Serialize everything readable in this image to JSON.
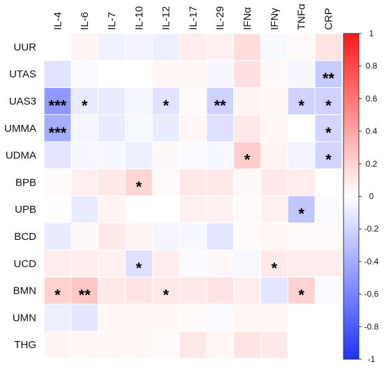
{
  "chart_data": {
    "type": "heatmap",
    "title": "",
    "xlabel": "",
    "ylabel": "",
    "columns": [
      "IL-4",
      "IL-6",
      "IL-7",
      "IL-10",
      "IL-12",
      "IL-17",
      "IL-29",
      "IFNα",
      "IFNγ",
      "TNFα",
      "CRP"
    ],
    "rows": [
      "UUR",
      "UTAS",
      "UAS3",
      "UMMA",
      "UDMA",
      "BPB",
      "UPB",
      "BCD",
      "UCD",
      "BMN",
      "UMN",
      "THG"
    ],
    "values": [
      [
        0.0,
        0.05,
        -0.07,
        -0.06,
        -0.08,
        0.08,
        0.06,
        0.15,
        -0.03,
        0.02,
        0.12
      ],
      [
        -0.13,
        -0.02,
        0.0,
        0.0,
        0.04,
        0.04,
        -0.05,
        0.14,
        0.03,
        -0.04,
        -0.25
      ],
      [
        -0.5,
        -0.1,
        -0.1,
        -0.05,
        -0.14,
        0.02,
        -0.22,
        0.05,
        0.04,
        -0.22,
        -0.22
      ],
      [
        -0.4,
        -0.05,
        -0.1,
        -0.03,
        -0.1,
        0.04,
        -0.15,
        0.1,
        0.04,
        0.0,
        -0.2
      ],
      [
        -0.12,
        -0.04,
        -0.04,
        -0.08,
        0.03,
        -0.02,
        -0.04,
        0.22,
        0.05,
        -0.06,
        -0.2
      ],
      [
        0.02,
        0.07,
        0.1,
        0.18,
        0.02,
        0.1,
        0.1,
        0.03,
        0.1,
        0.08,
        0.0
      ],
      [
        0.01,
        -0.1,
        0.05,
        0.0,
        0.0,
        0.06,
        0.06,
        0.02,
        0.06,
        -0.28,
        -0.02
      ],
      [
        -0.1,
        0.03,
        0.1,
        0.05,
        -0.05,
        -0.04,
        -0.12,
        0.02,
        0.04,
        0.02,
        0.02
      ],
      [
        0.08,
        0.08,
        0.06,
        -0.15,
        0.08,
        -0.02,
        0.03,
        -0.03,
        0.1,
        0.08,
        0.08
      ],
      [
        0.2,
        0.25,
        0.1,
        0.12,
        0.1,
        0.1,
        0.12,
        0.08,
        -0.12,
        0.2,
        -0.02
      ],
      [
        -0.08,
        -0.12,
        0.04,
        0.04,
        0.04,
        0.02,
        -0.02,
        0.04,
        0.04,
        0.0,
        0.0
      ],
      [
        0.05,
        0.04,
        0.04,
        0.04,
        0.02,
        0.1,
        0.04,
        0.12,
        0.1,
        0.0,
        0.0
      ]
    ],
    "significance": [
      [
        "",
        "",
        "",
        "",
        "",
        "",
        "",
        "",
        "",
        "",
        ""
      ],
      [
        "",
        "",
        "",
        "",
        "",
        "",
        "",
        "",
        "",
        "",
        "**"
      ],
      [
        "***",
        "*",
        "",
        "",
        "*",
        "",
        "**",
        "",
        "",
        "*",
        "*"
      ],
      [
        "***",
        "",
        "",
        "",
        "",
        "",
        "",
        "",
        "",
        "",
        "*"
      ],
      [
        "",
        "",
        "",
        "",
        "",
        "",
        "",
        "*",
        "",
        "",
        "*"
      ],
      [
        "",
        "",
        "",
        "*",
        "",
        "",
        "",
        "",
        "",
        "",
        ""
      ],
      [
        "",
        "",
        "",
        "",
        "",
        "",
        "",
        "",
        "",
        "*",
        ""
      ],
      [
        "",
        "",
        "",
        "",
        "",
        "",
        "",
        "",
        "",
        "",
        ""
      ],
      [
        "",
        "",
        "",
        "*",
        "",
        "",
        "",
        "",
        "*",
        "",
        ""
      ],
      [
        "*",
        "**",
        "",
        "",
        "*",
        "",
        "",
        "",
        "",
        "*",
        ""
      ],
      [
        "",
        "",
        "",
        "",
        "",
        "",
        "",
        "",
        "",
        "",
        ""
      ],
      [
        "",
        "",
        "",
        "",
        "",
        "",
        "",
        "",
        "",
        "",
        ""
      ]
    ],
    "colorbar": {
      "min": -1,
      "max": 1,
      "ticks": [
        "1",
        "0.8",
        "0.6",
        "0.4",
        "0.2",
        "0",
        "-0.2",
        "-0.4",
        "-0.6",
        "-0.8",
        "-1"
      ],
      "low_color": "#1f32ff",
      "mid_color": "#ffffff",
      "high_color": "#ff1a1a"
    },
    "grid": true,
    "legend": "right"
  }
}
